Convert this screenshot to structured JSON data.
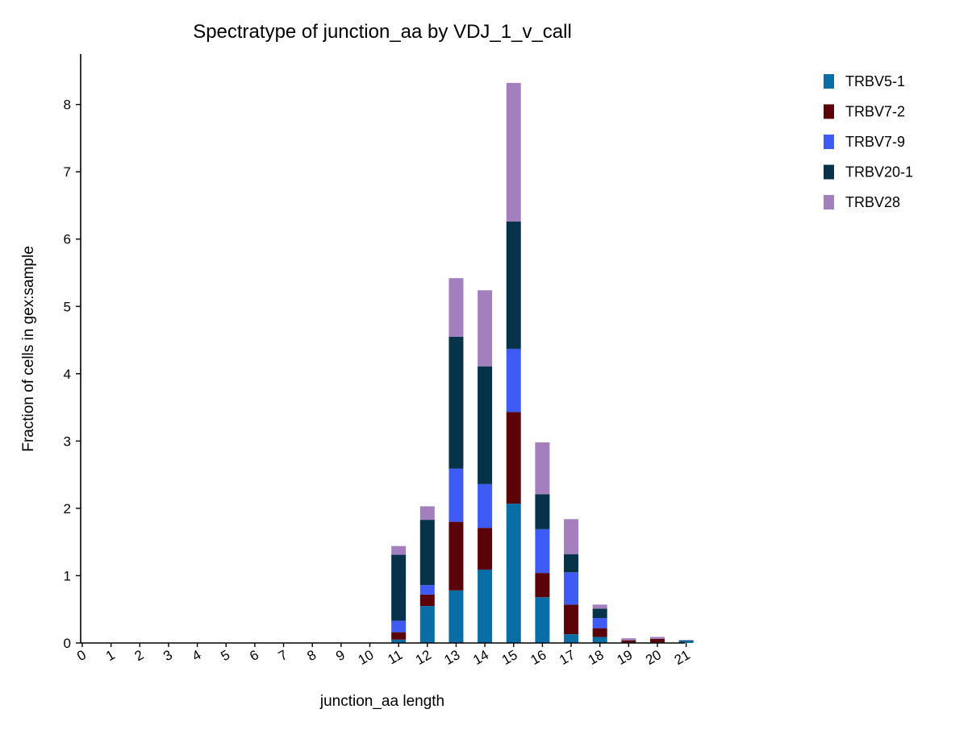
{
  "chart_data": {
    "type": "bar",
    "stacked": true,
    "title": "Spectratype of junction_aa by VDJ_1_v_call",
    "xlabel": "junction_aa length",
    "ylabel": "Fraction of cells in gex:sample",
    "categories": [
      "0",
      "1",
      "2",
      "3",
      "4",
      "5",
      "6",
      "7",
      "8",
      "9",
      "10",
      "11",
      "12",
      "13",
      "14",
      "15",
      "16",
      "17",
      "18",
      "19",
      "20",
      "21"
    ],
    "ylim": [
      0,
      8.75
    ],
    "yticks": [
      "0",
      "1",
      "2",
      "3",
      "4",
      "5",
      "6",
      "7",
      "8"
    ],
    "legend_position": "top-right outside",
    "grid": false,
    "series": [
      {
        "name": "TRBV5-1",
        "color": "#0a6ea6",
        "values": [
          0,
          0,
          0,
          0,
          0,
          0,
          0,
          0,
          0,
          0,
          0,
          0.05,
          0.55,
          0.78,
          1.09,
          2.07,
          0.68,
          0.13,
          0.09,
          0.01,
          0.01,
          0.03
        ]
      },
      {
        "name": "TRBV7-2",
        "color": "#5a0308",
        "values": [
          0,
          0,
          0,
          0,
          0,
          0,
          0,
          0,
          0,
          0,
          0,
          0.11,
          0.17,
          1.02,
          0.62,
          1.36,
          0.36,
          0.44,
          0.13,
          0.03,
          0.05,
          0
        ]
      },
      {
        "name": "TRBV7-9",
        "color": "#3e5cf5",
        "values": [
          0,
          0,
          0,
          0,
          0,
          0,
          0,
          0,
          0,
          0,
          0,
          0.17,
          0.14,
          0.79,
          0.65,
          0.94,
          0.65,
          0.48,
          0.15,
          0,
          0,
          0
        ]
      },
      {
        "name": "TRBV20-1",
        "color": "#06324a",
        "values": [
          0,
          0,
          0,
          0,
          0,
          0,
          0,
          0,
          0,
          0,
          0,
          0.98,
          0.97,
          1.96,
          1.75,
          1.89,
          0.52,
          0.27,
          0.14,
          0,
          0,
          0.01
        ]
      },
      {
        "name": "TRBV28",
        "color": "#a37fbe",
        "values": [
          0,
          0,
          0,
          0,
          0,
          0,
          0,
          0,
          0,
          0,
          0,
          0.13,
          0.2,
          0.87,
          1.13,
          2.06,
          0.77,
          0.52,
          0.06,
          0.03,
          0.03,
          0
        ]
      }
    ]
  }
}
